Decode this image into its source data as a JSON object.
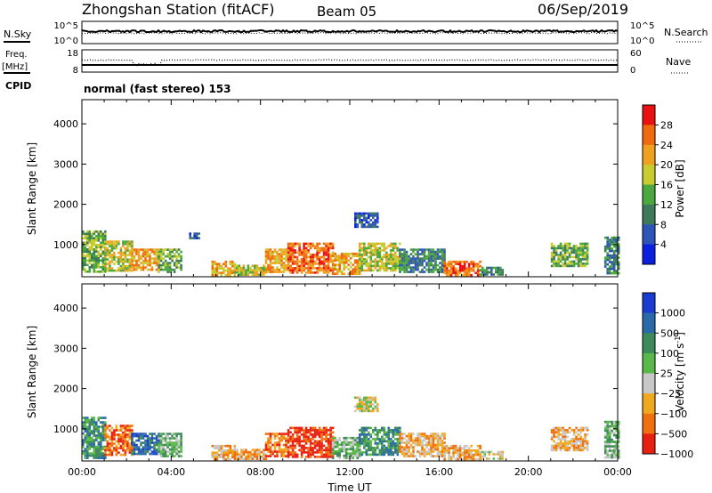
{
  "header": {
    "station": "Zhongshan Station (fitACF)",
    "beam": "Beam 05",
    "date": "06/Sep/2019"
  },
  "sky_panel": {
    "left_label": "N.Sky",
    "left_ticks": [
      "10^5",
      "10^0"
    ],
    "right_label": "N.Search",
    "right_ticks": [
      "10^5",
      "10^0"
    ]
  },
  "freq_panel": {
    "left_label": "Freq.",
    "left_unit": "[MHz]",
    "left_ticks": [
      "18",
      "8"
    ],
    "right_label": "Nave",
    "right_ticks": [
      "60",
      "0"
    ]
  },
  "cpid": {
    "label": "CPID",
    "text": "normal (fast stereo) 153"
  },
  "chart_data": [
    {
      "type": "heatmap",
      "name": "power",
      "ylabel": "Slant Range [km]",
      "yticks": [
        1000,
        2000,
        3000,
        4000
      ],
      "ylim": [
        200,
        4600
      ],
      "xticks": [
        "00:00",
        "04:00",
        "08:00",
        "12:00",
        "16:00",
        "20:00",
        "00:00"
      ],
      "xlim": [
        0,
        24
      ],
      "colorbar": {
        "label": "Power [dB]",
        "tick_labels": [
          "4",
          "8",
          "12",
          "16",
          "20",
          "24",
          "28"
        ],
        "colors": [
          "#0b1fe0",
          "#2d55b8",
          "#3e7a5a",
          "#4aa83e",
          "#c8cc30",
          "#f0a020",
          "#f06a10",
          "#e81010"
        ]
      },
      "patches": [
        {
          "t0": 0.0,
          "t1": 1.0,
          "r0": 300,
          "r1": 1350,
          "level": 3
        },
        {
          "t0": 1.0,
          "t1": 2.2,
          "r0": 350,
          "r1": 1100,
          "level": 4
        },
        {
          "t0": 2.2,
          "t1": 3.4,
          "r0": 350,
          "r1": 900,
          "level": 5
        },
        {
          "t0": 3.4,
          "t1": 4.4,
          "r0": 300,
          "r1": 900,
          "level": 3
        },
        {
          "t0": 4.8,
          "t1": 5.2,
          "r0": 1150,
          "r1": 1300,
          "level": 1
        },
        {
          "t0": 5.8,
          "t1": 6.8,
          "r0": 250,
          "r1": 600,
          "level": 5
        },
        {
          "t0": 6.8,
          "t1": 8.2,
          "r0": 250,
          "r1": 500,
          "level": 4
        },
        {
          "t0": 8.2,
          "t1": 9.2,
          "r0": 300,
          "r1": 900,
          "level": 5
        },
        {
          "t0": 9.2,
          "t1": 11.2,
          "r0": 300,
          "r1": 1050,
          "level": 6
        },
        {
          "t0": 11.2,
          "t1": 12.4,
          "r0": 300,
          "r1": 800,
          "level": 5
        },
        {
          "t0": 12.2,
          "t1": 13.2,
          "r0": 1450,
          "r1": 1800,
          "level": 1
        },
        {
          "t0": 12.4,
          "t1": 14.2,
          "r0": 350,
          "r1": 1050,
          "level": 4
        },
        {
          "t0": 14.2,
          "t1": 16.2,
          "r0": 300,
          "r1": 900,
          "level": 2
        },
        {
          "t0": 16.2,
          "t1": 17.8,
          "r0": 250,
          "r1": 600,
          "level": 6
        },
        {
          "t0": 17.8,
          "t1": 18.8,
          "r0": 250,
          "r1": 450,
          "level": 2
        },
        {
          "t0": 21.0,
          "t1": 22.6,
          "r0": 450,
          "r1": 1050,
          "level": 3
        },
        {
          "t0": 23.4,
          "t1": 24.0,
          "r0": 300,
          "r1": 1200,
          "level": 2
        }
      ]
    },
    {
      "type": "heatmap",
      "name": "velocity",
      "ylabel": "Slant Range [km]",
      "yticks": [
        1000,
        2000,
        3000,
        4000
      ],
      "ylim": [
        200,
        4600
      ],
      "xticks": [
        "00:00",
        "04:00",
        "08:00",
        "12:00",
        "16:00",
        "20:00",
        "00:00"
      ],
      "xlim": [
        0,
        24
      ],
      "xlabel": "Time UT",
      "colorbar": {
        "label": "Velocity",
        "unit": "[m s",
        "unit_sup": "-1",
        "unit_end": "]",
        "tick_labels": [
          "1000",
          "500",
          "100",
          "25",
          "−25",
          "−100",
          "−500",
          "−1000"
        ],
        "colors": [
          "#1a3cd0",
          "#2a6aa8",
          "#3d8a5a",
          "#5ab848",
          "#c8c8c8",
          "#f0a820",
          "#f07010",
          "#e82010"
        ]
      },
      "patches": [
        {
          "t0": 0.0,
          "t1": 1.0,
          "r0": 300,
          "r1": 1300,
          "level": 2
        },
        {
          "t0": 1.0,
          "t1": 2.2,
          "r0": 350,
          "r1": 1100,
          "level": 6
        },
        {
          "t0": 2.2,
          "t1": 3.4,
          "r0": 350,
          "r1": 900,
          "level": 1
        },
        {
          "t0": 3.4,
          "t1": 4.4,
          "r0": 300,
          "r1": 900,
          "level": 3
        },
        {
          "t0": 5.8,
          "t1": 6.8,
          "r0": 250,
          "r1": 600,
          "level": 5
        },
        {
          "t0": 6.8,
          "t1": 8.2,
          "r0": 250,
          "r1": 500,
          "level": 5
        },
        {
          "t0": 8.2,
          "t1": 9.2,
          "r0": 300,
          "r1": 900,
          "level": 6
        },
        {
          "t0": 9.2,
          "t1": 11.2,
          "r0": 300,
          "r1": 1050,
          "level": 7
        },
        {
          "t0": 11.2,
          "t1": 12.4,
          "r0": 300,
          "r1": 800,
          "level": 3
        },
        {
          "t0": 12.2,
          "t1": 13.2,
          "r0": 1450,
          "r1": 1800,
          "level": 4
        },
        {
          "t0": 12.4,
          "t1": 14.2,
          "r0": 350,
          "r1": 1050,
          "level": 2
        },
        {
          "t0": 14.2,
          "t1": 16.2,
          "r0": 300,
          "r1": 900,
          "level": 5
        },
        {
          "t0": 16.2,
          "t1": 17.8,
          "r0": 250,
          "r1": 600,
          "level": 5
        },
        {
          "t0": 17.8,
          "t1": 18.8,
          "r0": 250,
          "r1": 450,
          "level": 4
        },
        {
          "t0": 21.0,
          "t1": 22.6,
          "r0": 450,
          "r1": 1050,
          "level": 5
        },
        {
          "t0": 23.4,
          "t1": 24.0,
          "r0": 300,
          "r1": 1200,
          "level": 3
        }
      ]
    }
  ]
}
